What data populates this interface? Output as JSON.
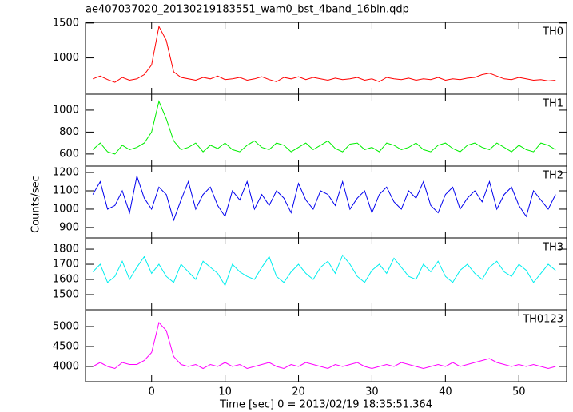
{
  "chart_data": [
    {
      "type": "line",
      "title": "ae407037020_20130219183551_wam0_bst_4band_16bin.qdp",
      "x": [
        -8,
        -7,
        -6,
        -5,
        -4,
        -3,
        -2,
        -1,
        0,
        1,
        2,
        3,
        4,
        5,
        6,
        7,
        8,
        9,
        10,
        11,
        12,
        13,
        14,
        15,
        16,
        17,
        18,
        19,
        20,
        21,
        22,
        23,
        24,
        25,
        26,
        27,
        28,
        29,
        30,
        31,
        32,
        33,
        34,
        35,
        36,
        37,
        38,
        39,
        40,
        41,
        42,
        43,
        44,
        45,
        46,
        47,
        48,
        49,
        50,
        51,
        52,
        53,
        54,
        55
      ],
      "xlim": [
        -9,
        56.5
      ],
      "xticks": [
        0,
        10,
        20,
        30,
        40,
        50
      ],
      "ylim": [
        480,
        1510
      ],
      "yticks": [
        1000,
        1500
      ],
      "series": [
        {
          "name": "TH0",
          "color": "#ff0000",
          "values": [
            700,
            740,
            690,
            650,
            720,
            680,
            700,
            760,
            900,
            1450,
            1250,
            800,
            720,
            700,
            680,
            720,
            700,
            740,
            690,
            700,
            720,
            680,
            700,
            730,
            690,
            660,
            720,
            700,
            730,
            690,
            720,
            700,
            680,
            710,
            690,
            700,
            720,
            680,
            700,
            660,
            720,
            700,
            690,
            710,
            680,
            700,
            690,
            720,
            680,
            700,
            690,
            710,
            720,
            760,
            780,
            740,
            700,
            690,
            720,
            700,
            680,
            690,
            670,
            680
          ]
        }
      ]
    },
    {
      "type": "line",
      "x": [
        -8,
        -7,
        -6,
        -5,
        -4,
        -3,
        -2,
        -1,
        0,
        1,
        2,
        3,
        4,
        5,
        6,
        7,
        8,
        9,
        10,
        11,
        12,
        13,
        14,
        15,
        16,
        17,
        18,
        19,
        20,
        21,
        22,
        23,
        24,
        25,
        26,
        27,
        28,
        29,
        30,
        31,
        32,
        33,
        34,
        35,
        36,
        37,
        38,
        39,
        40,
        41,
        42,
        43,
        44,
        45,
        46,
        47,
        48,
        49,
        50,
        51,
        52,
        53,
        54,
        55
      ],
      "xlim": [
        -9,
        56.5
      ],
      "xticks": [
        0,
        10,
        20,
        30,
        40,
        50
      ],
      "ylim": [
        490,
        1145
      ],
      "yticks": [
        600,
        800,
        1000
      ],
      "series": [
        {
          "name": "TH1",
          "color": "#00ee00",
          "values": [
            640,
            700,
            620,
            600,
            680,
            640,
            660,
            700,
            800,
            1080,
            920,
            720,
            640,
            660,
            700,
            620,
            680,
            650,
            700,
            640,
            620,
            680,
            720,
            660,
            640,
            700,
            680,
            620,
            660,
            700,
            640,
            680,
            720,
            650,
            620,
            690,
            700,
            640,
            660,
            620,
            700,
            680,
            640,
            660,
            700,
            640,
            620,
            680,
            700,
            650,
            620,
            680,
            700,
            660,
            640,
            700,
            660,
            620,
            680,
            640,
            620,
            700,
            680,
            640
          ]
        }
      ]
    },
    {
      "type": "line",
      "ylabel": "Counts/sec",
      "x": [
        -8,
        -7,
        -6,
        -5,
        -4,
        -3,
        -2,
        -1,
        0,
        1,
        2,
        3,
        4,
        5,
        6,
        7,
        8,
        9,
        10,
        11,
        12,
        13,
        14,
        15,
        16,
        17,
        18,
        19,
        20,
        21,
        22,
        23,
        24,
        25,
        26,
        27,
        28,
        29,
        30,
        31,
        32,
        33,
        34,
        35,
        36,
        37,
        38,
        39,
        40,
        41,
        42,
        43,
        44,
        45,
        46,
        47,
        48,
        49,
        50,
        51,
        52,
        53,
        54,
        55
      ],
      "xlim": [
        -9,
        56.5
      ],
      "xticks": [
        0,
        10,
        20,
        30,
        40,
        50
      ],
      "ylim": [
        843,
        1235
      ],
      "yticks": [
        900,
        1000,
        1100,
        1200
      ],
      "series": [
        {
          "name": "TH2",
          "color": "#0000ee",
          "values": [
            1080,
            1150,
            1000,
            1020,
            1100,
            980,
            1180,
            1060,
            1000,
            1120,
            1080,
            940,
            1050,
            1150,
            1000,
            1080,
            1120,
            1020,
            960,
            1100,
            1050,
            1150,
            1000,
            1080,
            1020,
            1100,
            1060,
            980,
            1140,
            1050,
            1000,
            1100,
            1080,
            1020,
            1150,
            1000,
            1060,
            1100,
            980,
            1080,
            1120,
            1040,
            1000,
            1100,
            1060,
            1150,
            1020,
            980,
            1080,
            1120,
            1000,
            1060,
            1100,
            1040,
            1150,
            1000,
            1080,
            1120,
            1020,
            960,
            1100,
            1050,
            1000,
            1080
          ]
        }
      ]
    },
    {
      "type": "line",
      "x": [
        -8,
        -7,
        -6,
        -5,
        -4,
        -3,
        -2,
        -1,
        0,
        1,
        2,
        3,
        4,
        5,
        6,
        7,
        8,
        9,
        10,
        11,
        12,
        13,
        14,
        15,
        16,
        17,
        18,
        19,
        20,
        21,
        22,
        23,
        24,
        25,
        26,
        27,
        28,
        29,
        30,
        31,
        32,
        33,
        34,
        35,
        36,
        37,
        38,
        39,
        40,
        41,
        42,
        43,
        44,
        45,
        46,
        47,
        48,
        49,
        50,
        51,
        52,
        53,
        54,
        55
      ],
      "xlim": [
        -9,
        56.5
      ],
      "xticks": [
        0,
        10,
        20,
        30,
        40,
        50
      ],
      "ylim": [
        1400,
        1874
      ],
      "yticks": [
        1500,
        1600,
        1700,
        1800
      ],
      "series": [
        {
          "name": "TH3",
          "color": "#00eeee",
          "values": [
            1650,
            1700,
            1580,
            1620,
            1720,
            1600,
            1680,
            1750,
            1640,
            1700,
            1620,
            1580,
            1700,
            1650,
            1600,
            1720,
            1680,
            1640,
            1560,
            1700,
            1650,
            1620,
            1600,
            1680,
            1750,
            1620,
            1580,
            1650,
            1700,
            1640,
            1600,
            1680,
            1720,
            1640,
            1760,
            1700,
            1620,
            1580,
            1660,
            1700,
            1640,
            1740,
            1680,
            1620,
            1600,
            1700,
            1650,
            1720,
            1620,
            1580,
            1660,
            1700,
            1640,
            1600,
            1680,
            1720,
            1650,
            1620,
            1700,
            1660,
            1580,
            1640,
            1700,
            1660
          ]
        }
      ]
    },
    {
      "type": "line",
      "xlabel": "Time [sec] 0 = 2013/02/19 18:35:51.364",
      "x": [
        -8,
        -7,
        -6,
        -5,
        -4,
        -3,
        -2,
        -1,
        0,
        1,
        2,
        3,
        4,
        5,
        6,
        7,
        8,
        9,
        10,
        11,
        12,
        13,
        14,
        15,
        16,
        17,
        18,
        19,
        20,
        21,
        22,
        23,
        24,
        25,
        26,
        27,
        28,
        29,
        30,
        31,
        32,
        33,
        34,
        35,
        36,
        37,
        38,
        39,
        40,
        41,
        42,
        43,
        44,
        45,
        46,
        47,
        48,
        49,
        50,
        51,
        52,
        53,
        54,
        55
      ],
      "xlim": [
        -9,
        56.5
      ],
      "xticks": [
        0,
        10,
        20,
        30,
        40,
        50
      ],
      "ylim": [
        3620,
        5420
      ],
      "yticks": [
        4000,
        4500,
        5000
      ],
      "series": [
        {
          "name": "TH0123",
          "color": "#ff00ff",
          "values": [
            4000,
            4100,
            4000,
            3950,
            4100,
            4050,
            4050,
            4150,
            4350,
            5100,
            4900,
            4250,
            4050,
            4000,
            4050,
            3950,
            4050,
            4000,
            4100,
            4000,
            4050,
            3950,
            4000,
            4050,
            4100,
            4000,
            3950,
            4050,
            4000,
            4100,
            4050,
            4000,
            3950,
            4050,
            4000,
            4050,
            4100,
            4000,
            3950,
            4000,
            4050,
            4000,
            4100,
            4050,
            4000,
            3950,
            4000,
            4050,
            4000,
            4100,
            4000,
            4050,
            4100,
            4150,
            4200,
            4100,
            4050,
            4000,
            4050,
            4000,
            4050,
            4000,
            3950,
            4000
          ]
        }
      ]
    }
  ]
}
